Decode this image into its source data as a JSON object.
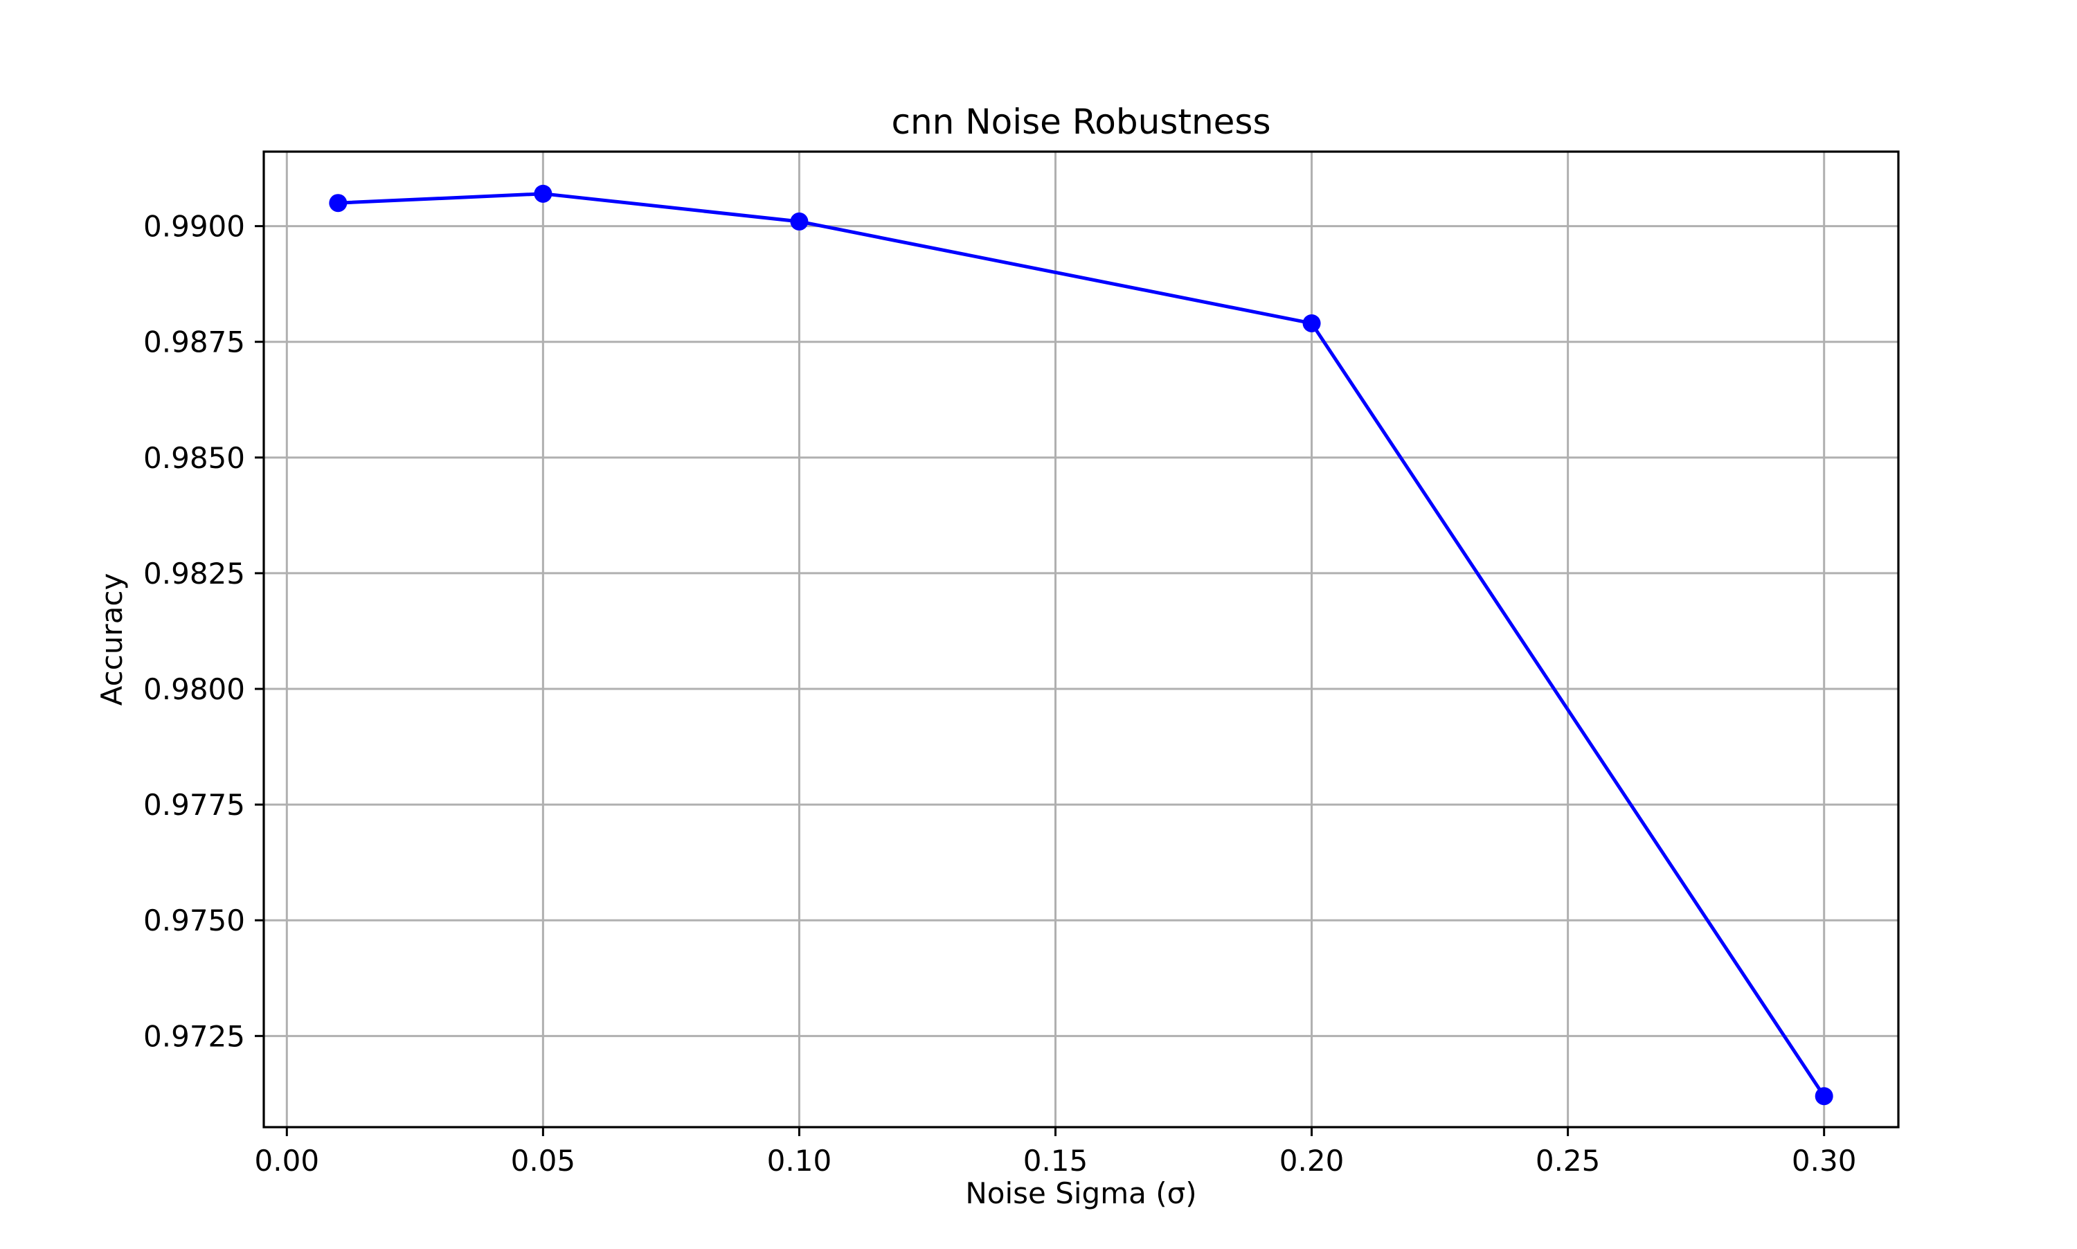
{
  "chart_data": {
    "type": "line",
    "title": "cnn Noise Robustness",
    "xlabel": "Noise Sigma (σ)",
    "ylabel": "Accuracy",
    "xlim": [
      -0.0045,
      0.3145
    ],
    "ylim": [
      0.97053,
      0.99161
    ],
    "xticks": [
      0.0,
      0.05,
      0.1,
      0.15,
      0.2,
      0.25,
      0.3
    ],
    "xtick_labels": [
      "0.00",
      "0.05",
      "0.10",
      "0.15",
      "0.20",
      "0.25",
      "0.30"
    ],
    "yticks": [
      0.9725,
      0.975,
      0.9775,
      0.98,
      0.9825,
      0.985,
      0.9875,
      0.99
    ],
    "ytick_labels": [
      "0.9725",
      "0.9750",
      "0.9775",
      "0.9800",
      "0.9825",
      "0.9850",
      "0.9875",
      "0.9900"
    ],
    "grid": true,
    "legend": false,
    "series": [
      {
        "color": "#0000ff",
        "marker": "circle",
        "points": [
          {
            "x": 0.01,
            "y": 0.9905
          },
          {
            "x": 0.05,
            "y": 0.9907
          },
          {
            "x": 0.1,
            "y": 0.9901
          },
          {
            "x": 0.2,
            "y": 0.9879
          },
          {
            "x": 0.3,
            "y": 0.9712
          }
        ]
      }
    ]
  }
}
